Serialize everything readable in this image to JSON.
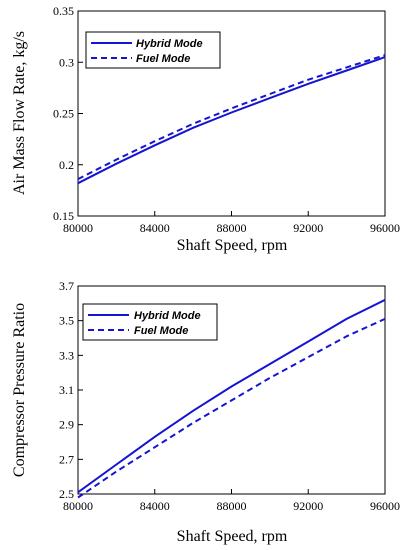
{
  "chart_data": [
    {
      "type": "line",
      "xlabel": "Shaft Speed, rpm",
      "ylabel": "Air Mass Flow Rate, kg/s",
      "xlim": [
        80000,
        96000
      ],
      "ylim": [
        0.15,
        0.35
      ],
      "xticks": [
        "80000",
        "84000",
        "88000",
        "92000",
        "96000"
      ],
      "yticks": [
        "0.15",
        "0.2",
        "0.25",
        "0.3",
        "0.35"
      ],
      "x": [
        80000,
        82000,
        84000,
        86000,
        88000,
        90000,
        92000,
        94000,
        96000
      ],
      "legend_position": "top-left",
      "series": [
        {
          "name": "Hybrid Mode",
          "style": "solid",
          "color": "#1414d2",
          "values": [
            0.182,
            0.201,
            0.219,
            0.236,
            0.251,
            0.265,
            0.279,
            0.292,
            0.305
          ]
        },
        {
          "name": "Fuel Mode",
          "style": "dashed",
          "color": "#1414d2",
          "values": [
            0.186,
            0.205,
            0.223,
            0.24,
            0.255,
            0.269,
            0.283,
            0.295,
            0.307
          ]
        }
      ]
    },
    {
      "type": "line",
      "xlabel": "Shaft Speed, rpm",
      "ylabel": "Compressor Pressure Ratio",
      "xlim": [
        80000,
        96000
      ],
      "ylim": [
        2.5,
        3.7
      ],
      "xticks": [
        "80000",
        "84000",
        "88000",
        "92000",
        "96000"
      ],
      "yticks": [
        "2.5",
        "2.7",
        "2.9",
        "3.1",
        "3.3",
        "3.5",
        "3.7"
      ],
      "x": [
        80000,
        82000,
        84000,
        86000,
        88000,
        90000,
        92000,
        94000,
        96000
      ],
      "legend_position": "top-left",
      "series": [
        {
          "name": "Hybrid Mode",
          "style": "solid",
          "color": "#1414d2",
          "values": [
            2.51,
            2.67,
            2.83,
            2.98,
            3.12,
            3.25,
            3.38,
            3.51,
            3.62
          ]
        },
        {
          "name": "Fuel Mode",
          "style": "dashed",
          "color": "#1414d2",
          "values": [
            2.48,
            2.63,
            2.77,
            2.91,
            3.04,
            3.17,
            3.29,
            3.41,
            3.51
          ]
        }
      ]
    }
  ]
}
